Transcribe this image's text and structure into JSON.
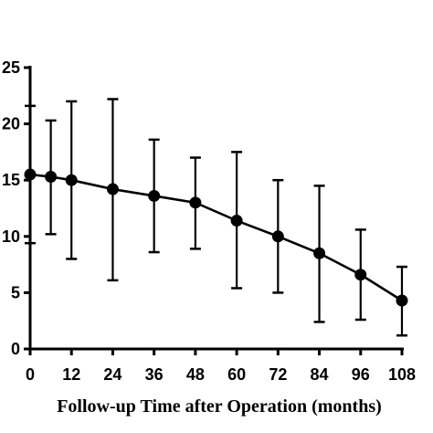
{
  "chart_data": {
    "type": "line",
    "title": "",
    "xlabel": "Follow-up Time after Operation (months)",
    "ylabel": "",
    "xlim": [
      0,
      108
    ],
    "ylim": [
      0,
      25
    ],
    "x_ticks": [
      0,
      12,
      24,
      36,
      48,
      60,
      72,
      84,
      96,
      108
    ],
    "y_ticks": [
      0,
      5,
      10,
      15,
      20,
      25
    ],
    "grid": false,
    "legend": "none",
    "series": [
      {
        "x": [
          0,
          6,
          12,
          24,
          36,
          48,
          60,
          72,
          84,
          96,
          108
        ],
        "y": [
          15.5,
          15.3,
          15.0,
          14.2,
          13.6,
          13.0,
          11.4,
          10.0,
          8.5,
          6.6,
          4.3
        ],
        "error_low": [
          9.4,
          10.2,
          8.0,
          6.1,
          8.6,
          8.9,
          5.4,
          5.0,
          2.4,
          2.6,
          1.2
        ],
        "error_high": [
          21.6,
          20.3,
          22.0,
          22.2,
          18.6,
          17.0,
          17.5,
          15.0,
          14.5,
          10.6,
          7.3
        ]
      }
    ],
    "colors": {
      "line": "#000000",
      "marker": "#000000",
      "axis": "#000000"
    }
  }
}
